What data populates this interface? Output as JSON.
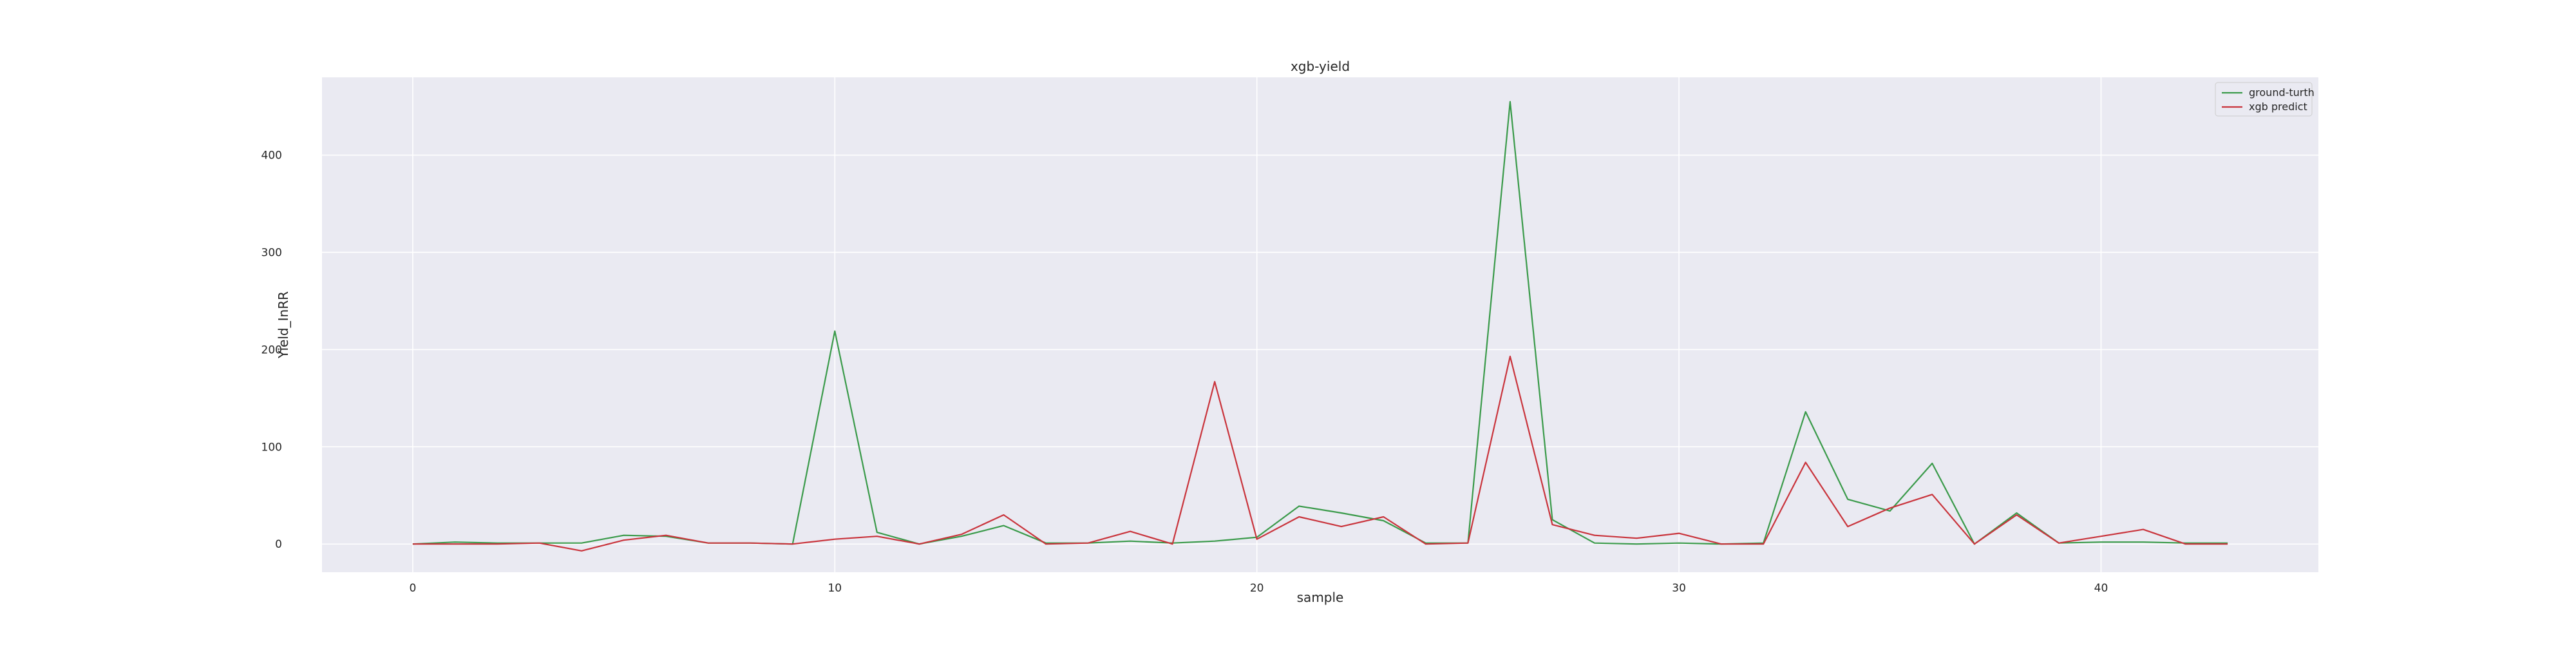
{
  "chart_data": {
    "type": "line",
    "title": "xgb-yield",
    "xlabel": "sample",
    "ylabel": "Yield_InRR",
    "xlim": [
      -2.15,
      45.15
    ],
    "ylim": [
      -29,
      480
    ],
    "xticks": [
      0,
      10,
      20,
      30,
      40
    ],
    "yticks": [
      0,
      100,
      200,
      300,
      400
    ],
    "grid": true,
    "background": "#eaeaf2",
    "grid_color": "#ffffff",
    "legend_position": "top-right",
    "x": [
      0,
      1,
      2,
      3,
      4,
      5,
      6,
      7,
      8,
      9,
      10,
      11,
      12,
      13,
      14,
      15,
      16,
      17,
      18,
      19,
      20,
      21,
      22,
      23,
      24,
      25,
      26,
      27,
      28,
      29,
      30,
      31,
      32,
      33,
      34,
      35,
      36,
      37,
      38,
      39,
      40,
      41,
      42,
      43
    ],
    "series": [
      {
        "name": "ground-turth",
        "color": "#3a9a4a",
        "values": [
          0,
          2,
          1,
          1,
          1,
          9,
          8,
          1,
          1,
          0,
          219,
          12,
          0,
          8,
          19,
          1,
          1,
          3,
          1,
          3,
          7,
          39,
          32,
          24,
          1,
          1,
          455,
          25,
          1,
          0,
          1,
          0,
          1,
          136,
          46,
          34,
          83,
          0,
          32,
          1,
          2,
          2,
          1,
          1
        ]
      },
      {
        "name": "xgb predict",
        "color": "#c9343c",
        "values": [
          0,
          0,
          0,
          1,
          -7,
          4,
          9,
          1,
          1,
          0,
          5,
          8,
          0,
          10,
          30,
          0,
          1,
          13,
          0,
          167,
          5,
          28,
          18,
          28,
          0,
          1,
          193,
          20,
          9,
          6,
          11,
          0,
          0,
          84,
          18,
          37,
          51,
          0,
          30,
          1,
          8,
          15,
          0,
          0
        ]
      }
    ]
  }
}
